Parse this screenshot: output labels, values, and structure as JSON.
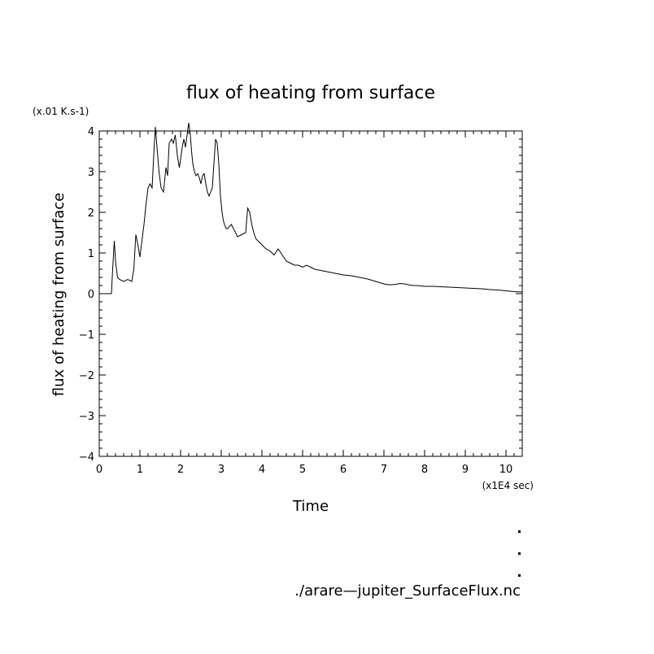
{
  "chart_data": {
    "type": "line",
    "title": "flux of heating from surface",
    "xlabel": "Time",
    "ylabel": "flux of heating from surface",
    "y_unit": "(x.01 K.s-1)",
    "x_unit": "(x1E4 sec)",
    "xlim": [
      0,
      10.4
    ],
    "ylim": [
      -4,
      4
    ],
    "x_ticks": [
      0,
      1,
      2,
      3,
      4,
      5,
      6,
      7,
      8,
      9,
      10
    ],
    "y_ticks": [
      -4,
      -3,
      -2,
      -1,
      0,
      1,
      2,
      3,
      4
    ],
    "series": [
      {
        "x": [
          0,
          0.1,
          0.2,
          0.3,
          0.33,
          0.37,
          0.4,
          0.45,
          0.5,
          0.6,
          0.7,
          0.8,
          0.85,
          0.9,
          0.95,
          1.0,
          1.05,
          1.1,
          1.15,
          1.2,
          1.25,
          1.3,
          1.35,
          1.38,
          1.42,
          1.47,
          1.52,
          1.58,
          1.64,
          1.68,
          1.72,
          1.78,
          1.82,
          1.87,
          1.92,
          1.97,
          2.0,
          2.04,
          2.08,
          2.12,
          2.16,
          2.2,
          2.24,
          2.27,
          2.3,
          2.34,
          2.38,
          2.42,
          2.46,
          2.5,
          2.54,
          2.58,
          2.62,
          2.66,
          2.7,
          2.74,
          2.78,
          2.82,
          2.86,
          2.9,
          2.94,
          2.98,
          3.02,
          3.05,
          3.08,
          3.12,
          3.16,
          3.2,
          3.25,
          3.3,
          3.4,
          3.5,
          3.6,
          3.65,
          3.7,
          3.75,
          3.8,
          3.85,
          3.9,
          4.0,
          4.1,
          4.2,
          4.3,
          4.4,
          4.5,
          4.6,
          4.7,
          4.8,
          4.9,
          5.0,
          5.1,
          5.2,
          5.3,
          5.4,
          5.5,
          5.6,
          5.7,
          5.8,
          5.9,
          6.0,
          6.1,
          6.2,
          6.3,
          6.4,
          6.5,
          6.6,
          6.7,
          6.8,
          6.9,
          7.0,
          7.1,
          7.2,
          7.3,
          7.4,
          7.5,
          7.6,
          7.7,
          7.8,
          7.9,
          8.0,
          8.2,
          8.4,
          8.6,
          8.8,
          9.0,
          9.2,
          9.4,
          9.6,
          9.8,
          10.0,
          10.2,
          10.4
        ],
        "y": [
          0,
          0,
          0,
          0,
          0.6,
          1.3,
          0.8,
          0.4,
          0.35,
          0.3,
          0.35,
          0.3,
          0.6,
          1.45,
          1.2,
          0.9,
          1.3,
          1.7,
          2.2,
          2.6,
          2.7,
          2.6,
          3.6,
          4.1,
          3.6,
          3.0,
          2.6,
          2.5,
          3.1,
          2.9,
          3.7,
          3.8,
          3.7,
          3.9,
          3.4,
          3.1,
          3.3,
          3.6,
          3.8,
          3.6,
          3.9,
          4.2,
          3.9,
          3.5,
          3.2,
          3.0,
          2.9,
          2.95,
          2.85,
          2.7,
          2.9,
          2.95,
          2.7,
          2.5,
          2.4,
          2.5,
          2.6,
          3.2,
          3.8,
          3.7,
          3.2,
          2.4,
          2.0,
          1.8,
          1.7,
          1.6,
          1.6,
          1.65,
          1.7,
          1.6,
          1.4,
          1.45,
          1.5,
          2.1,
          2.0,
          1.7,
          1.5,
          1.35,
          1.3,
          1.2,
          1.1,
          1.05,
          0.95,
          1.1,
          0.95,
          0.8,
          0.75,
          0.7,
          0.7,
          0.65,
          0.7,
          0.65,
          0.6,
          0.58,
          0.56,
          0.54,
          0.52,
          0.5,
          0.48,
          0.46,
          0.45,
          0.44,
          0.42,
          0.4,
          0.38,
          0.36,
          0.33,
          0.3,
          0.27,
          0.24,
          0.22,
          0.22,
          0.23,
          0.25,
          0.24,
          0.22,
          0.2,
          0.2,
          0.19,
          0.18,
          0.18,
          0.17,
          0.16,
          0.15,
          0.14,
          0.13,
          0.12,
          0.1,
          0.09,
          0.07,
          0.05,
          0.04
        ]
      }
    ]
  },
  "footer": {
    "filename": "./arare—jupiter_SurfaceFlux.nc"
  }
}
